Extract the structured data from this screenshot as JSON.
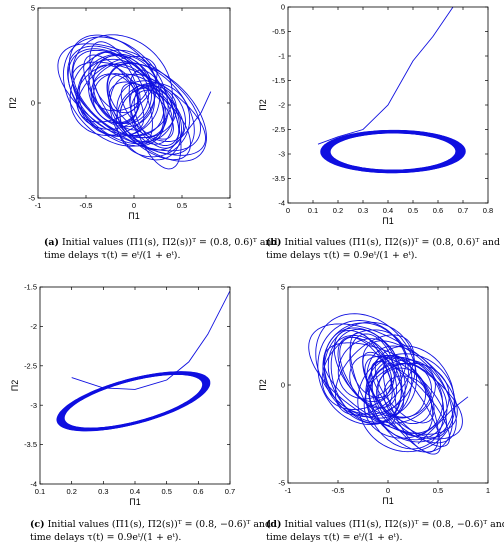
{
  "chart_data": [
    {
      "id": "a",
      "type": "line",
      "title": "",
      "xlabel": "Π1",
      "ylabel": "Π2",
      "xlim": [
        -1,
        1
      ],
      "ylim": [
        -5,
        5
      ],
      "xticks": [
        "-1",
        "-0.5",
        "0",
        "0.5",
        "1"
      ],
      "yticks": [
        "-5",
        "0",
        "5"
      ],
      "color": "#1010e0",
      "caption": {
        "tag": "(a)",
        "line1": "Initial values (Π1(s), Π2(s))ᵀ = (0.8, 0.6)ᵀ and",
        "line2": "time delays τ(t) = eᵗ/(1 + eᵗ)."
      }
    },
    {
      "id": "b",
      "type": "line",
      "title": "",
      "xlabel": "Π1",
      "ylabel": "Π2",
      "xlim": [
        0,
        0.8
      ],
      "ylim": [
        -4,
        0
      ],
      "xticks": [
        "0",
        "0.1",
        "0.2",
        "0.3",
        "0.4",
        "0.5",
        "0.6",
        "0.7",
        "0.8"
      ],
      "yticks": [
        "-4",
        "-3.5",
        "-3",
        "-2.5",
        "-2",
        "-1.5",
        "-1",
        "-0.5",
        "0"
      ],
      "color": "#1010e0",
      "caption": {
        "tag": "(b)",
        "line1": "Initial values (Π1(s), Π2(s))ᵀ = (0.8, 0.6)ᵀ and",
        "line2": "time delays τ(t) = 0.9eᵗ/(1 + eᵗ)."
      }
    },
    {
      "id": "c",
      "type": "line",
      "title": "",
      "xlabel": "Π1",
      "ylabel": "Π2",
      "xlim": [
        0.1,
        0.7
      ],
      "ylim": [
        -4,
        -1.5
      ],
      "xticks": [
        "0.1",
        "0.2",
        "0.3",
        "0.4",
        "0.5",
        "0.6",
        "0.7"
      ],
      "yticks": [
        "-4",
        "-3.5",
        "-3",
        "-2.5",
        "-2",
        "-1.5"
      ],
      "color": "#1010e0",
      "caption": {
        "tag": "(c)",
        "line1": "Initial values (Π1(s), Π2(s))ᵀ = (0.8, −0.6)ᵀ and",
        "line2": "time delays τ(t) = 0.9eᵗ/(1 + eᵗ)."
      }
    },
    {
      "id": "d",
      "type": "line",
      "title": "",
      "xlabel": "Π1",
      "ylabel": "Π2",
      "xlim": [
        -1,
        1
      ],
      "ylim": [
        -5,
        5
      ],
      "xticks": [
        "-1",
        "-0.5",
        "0",
        "0.5",
        "1"
      ],
      "yticks": [
        "-5",
        "0",
        "5"
      ],
      "color": "#1010e0",
      "caption": {
        "tag": "(d)",
        "line1": "Initial values (Π1(s), Π2(s))ᵀ = (0.8, −0.6)ᵀ and",
        "line2": "time delays τ(t) = eᵗ/(1 + eᵗ)."
      }
    }
  ]
}
